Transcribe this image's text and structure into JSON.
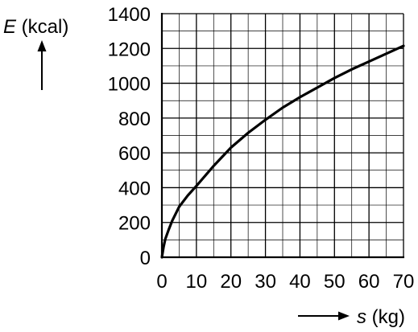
{
  "chart_data": {
    "type": "line",
    "ylabel_symbol": "E",
    "ylabel_unit": " (kcal)",
    "xlabel_symbol": "s",
    "xlabel_unit": " (kg)",
    "xlim": [
      0,
      70
    ],
    "ylim": [
      0,
      1400
    ],
    "x_ticks": [
      "0",
      "10",
      "20",
      "30",
      "40",
      "50",
      "60",
      "70"
    ],
    "y_ticks": [
      "0",
      "200",
      "400",
      "600",
      "800",
      "1000",
      "1200",
      "1400"
    ],
    "grid": true,
    "x": [
      0,
      0.5,
      1,
      2,
      3,
      5,
      7.5,
      10,
      15,
      20,
      25,
      30,
      35,
      40,
      45,
      50,
      55,
      60,
      65,
      70
    ],
    "y": [
      0,
      60,
      105,
      160,
      210,
      290,
      355,
      410,
      525,
      630,
      715,
      790,
      860,
      920,
      975,
      1030,
      1080,
      1125,
      1170,
      1215
    ],
    "line_color": "#000000"
  }
}
